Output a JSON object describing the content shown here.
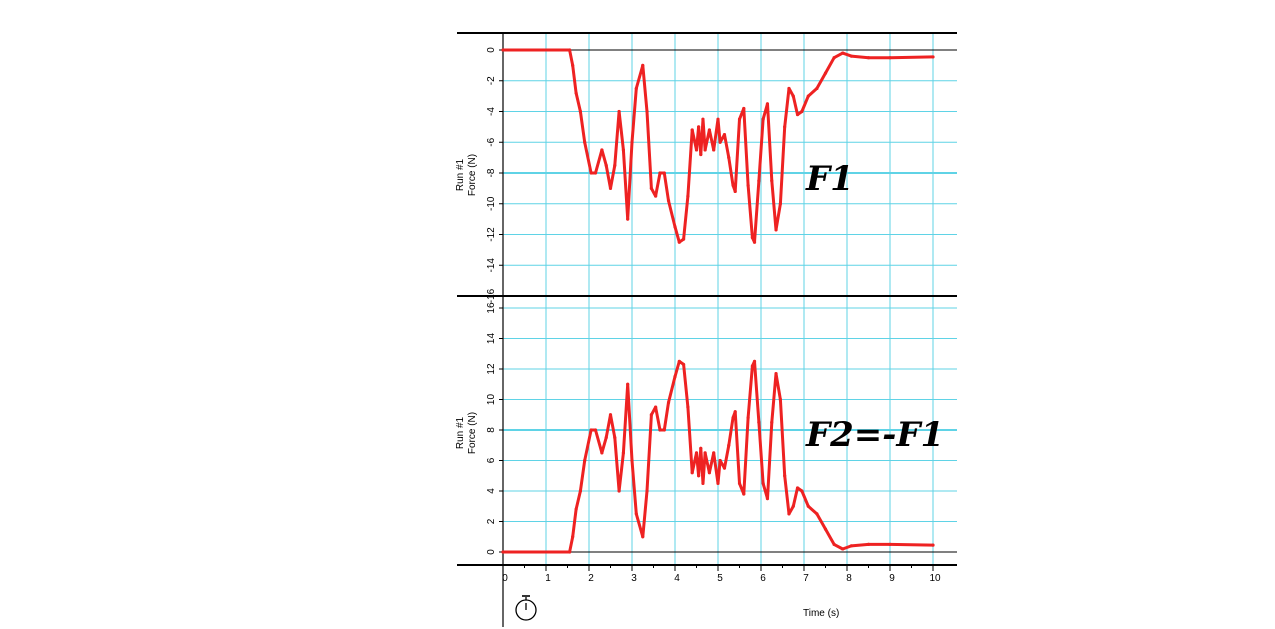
{
  "chart_data": [
    {
      "type": "line",
      "ylabel_line1": "Run #1",
      "ylabel_line2": "Force (N)",
      "annotation": "F1",
      "xlim": [
        0,
        10
      ],
      "ylim": [
        -16,
        0
      ],
      "y_ticks": [
        0,
        -2,
        -4,
        -6,
        -8,
        -10,
        -12,
        -14,
        -16
      ],
      "y_tick_labels": [
        "0",
        "-2",
        "-4",
        "-6",
        "-8",
        "-10",
        "-12",
        "-14",
        "-16"
      ],
      "grid": true,
      "color": "#ee2222",
      "series": [
        {
          "x": [
            0,
            1.55,
            1.62,
            1.7,
            1.8,
            1.9,
            2.05,
            2.15,
            2.3,
            2.4,
            2.5,
            2.6,
            2.7,
            2.8,
            2.9,
            3.0,
            3.1,
            3.25,
            3.35,
            3.45,
            3.55,
            3.65,
            3.75,
            3.85,
            4.0,
            4.1,
            4.2,
            4.3,
            4.4,
            4.5,
            4.55,
            4.6,
            4.65,
            4.7,
            4.8,
            4.9,
            5.0,
            5.05,
            5.15,
            5.25,
            5.35,
            5.4,
            5.5,
            5.6,
            5.7,
            5.8,
            5.85,
            5.95,
            6.05,
            6.15,
            6.25,
            6.35,
            6.45,
            6.55,
            6.65,
            6.75,
            6.85,
            6.95,
            7.1,
            7.3,
            7.5,
            7.7,
            7.9,
            8.1,
            8.5,
            9.0,
            10.0
          ],
          "y": [
            0,
            0,
            -1,
            -2.8,
            -4,
            -6,
            -8,
            -8,
            -6.5,
            -7.5,
            -9,
            -7.5,
            -4,
            -6.5,
            -11,
            -6,
            -2.5,
            -1,
            -4,
            -9,
            -9.5,
            -8,
            -8,
            -9.8,
            -11.5,
            -12.5,
            -12.3,
            -9.5,
            -5.2,
            -6.5,
            -5,
            -6.8,
            -4.5,
            -6.5,
            -5.2,
            -6.5,
            -4.5,
            -6,
            -5.5,
            -7,
            -8.8,
            -9.2,
            -4.5,
            -3.8,
            -8.8,
            -12.2,
            -12.5,
            -8.5,
            -4.5,
            -3.5,
            -8.5,
            -11.7,
            -10,
            -5,
            -2.5,
            -3,
            -4.2,
            -4,
            -3,
            -2.5,
            -1.5,
            -0.5,
            -0.2,
            -0.4,
            -0.5,
            -0.5,
            -0.45
          ]
        }
      ]
    },
    {
      "type": "line",
      "ylabel_line1": "Run #1",
      "ylabel_line2": "Force (N)",
      "annotation": "F2=-F1",
      "xlim": [
        0,
        10
      ],
      "ylim": [
        0,
        16
      ],
      "y_ticks": [
        0,
        2,
        4,
        6,
        8,
        10,
        12,
        14,
        16
      ],
      "y_tick_labels": [
        "0",
        "2",
        "4",
        "6",
        "8",
        "10",
        "12",
        "14",
        "16"
      ],
      "grid": true,
      "color": "#ee2222",
      "series": [
        {
          "x": [
            0,
            1.55,
            1.62,
            1.7,
            1.8,
            1.9,
            2.05,
            2.15,
            2.3,
            2.4,
            2.5,
            2.6,
            2.7,
            2.8,
            2.9,
            3.0,
            3.1,
            3.25,
            3.35,
            3.45,
            3.55,
            3.65,
            3.75,
            3.85,
            4.0,
            4.1,
            4.2,
            4.3,
            4.4,
            4.5,
            4.55,
            4.6,
            4.65,
            4.7,
            4.8,
            4.9,
            5.0,
            5.05,
            5.15,
            5.25,
            5.35,
            5.4,
            5.5,
            5.6,
            5.7,
            5.8,
            5.85,
            5.95,
            6.05,
            6.15,
            6.25,
            6.35,
            6.45,
            6.55,
            6.65,
            6.75,
            6.85,
            6.95,
            7.1,
            7.3,
            7.5,
            7.7,
            7.9,
            8.1,
            8.5,
            9.0,
            10.0
          ],
          "y": [
            0,
            0,
            1,
            2.8,
            4,
            6,
            8,
            8,
            6.5,
            7.5,
            9,
            7.5,
            4,
            6.5,
            11,
            6,
            2.5,
            1,
            4,
            9,
            9.5,
            8,
            8,
            9.8,
            11.5,
            12.5,
            12.3,
            9.5,
            5.2,
            6.5,
            5,
            6.8,
            4.5,
            6.5,
            5.2,
            6.5,
            4.5,
            6,
            5.5,
            7,
            8.8,
            9.2,
            4.5,
            3.8,
            8.8,
            12.2,
            12.5,
            8.5,
            4.5,
            3.5,
            8.5,
            11.7,
            10,
            5,
            2.5,
            3,
            4.2,
            4,
            3,
            2.5,
            1.5,
            0.5,
            0.2,
            0.4,
            0.5,
            0.5,
            0.45
          ]
        }
      ]
    }
  ],
  "x_axis": {
    "label": "Time (s)",
    "ticks": [
      0,
      1,
      2,
      3,
      4,
      5,
      6,
      7,
      8,
      9,
      10
    ],
    "tick_labels": [
      "0",
      "1",
      "2",
      "3",
      "4",
      "5",
      "6",
      "7",
      "8",
      "9",
      "10"
    ]
  },
  "icons": {
    "timer": "stopwatch-icon"
  }
}
